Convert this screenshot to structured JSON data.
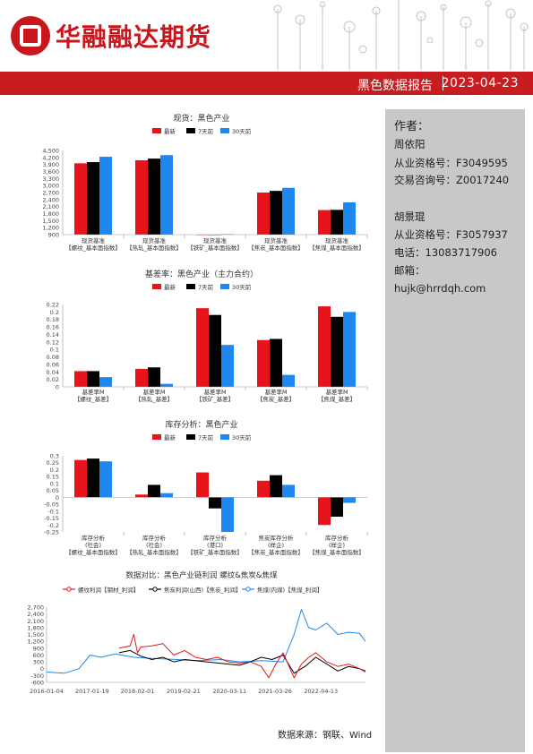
{
  "header": {
    "company_name": "华融融达期货",
    "report_title": "黑色数据报告",
    "date": "2023-04-23"
  },
  "sidebar": {
    "author_label": "作者：",
    "author1_name": "周依阳",
    "author1_license": "从业资格号：F3049595",
    "author1_advisory": "交易咨询号：Z0017240",
    "author2_name": "胡景琨",
    "author2_license": "从业资格号：F3057937",
    "phone": "电话：13083717906",
    "email_label": "邮箱：",
    "email": "hujk@hrrdqh.com"
  },
  "colors": {
    "brand_red": "#c71d20",
    "latest": "#e8141b",
    "d7": "#000000",
    "d30": "#1e88f0",
    "s_rebar": "#e8141b",
    "s_coke": "#000000",
    "s_coal": "#1e88f0"
  },
  "legend": {
    "latest": "最新",
    "d7": "7天前",
    "d30": "30天前"
  },
  "footer": {
    "source": "数据来源：钢联、Wind"
  },
  "chart_data": [
    {
      "type": "bar",
      "title": "现货：黑色产业",
      "categories": [
        [
          "现货基准",
          "【螺纹_基本面指数】"
        ],
        [
          "现货基准",
          "【热轧_基本面指数】"
        ],
        [
          "现货基准",
          "【铁矿_基本面指数】"
        ],
        [
          "现货基准",
          "【焦炭_基本面指数】"
        ],
        [
          "现货基准",
          "【焦煤_基本面指数】"
        ]
      ],
      "series": [
        {
          "name": "最新",
          "values": [
            3950,
            4080,
            890,
            2700,
            1950
          ]
        },
        {
          "name": "7天前",
          "values": [
            4000,
            4150,
            900,
            2770,
            1960
          ]
        },
        {
          "name": "30天前",
          "values": [
            4230,
            4300,
            920,
            2900,
            2280
          ]
        }
      ],
      "ylim": [
        900,
        4500
      ],
      "yticks": [
        "4,500",
        "4,200",
        "3,900",
        "3,600",
        "3,300",
        "3,000",
        "2,700",
        "2,400",
        "2,100",
        "1,800",
        "1,500",
        "1,200",
        "900"
      ]
    },
    {
      "type": "bar",
      "title": "基差率：黑色产业（主力合约）",
      "categories": [
        [
          "基差率M",
          "【螺纹_基差】"
        ],
        [
          "基差率M",
          "【热轧_基差】"
        ],
        [
          "基差率M",
          "【铁矿_基差】"
        ],
        [
          "基差率M",
          "【焦炭_基差】"
        ],
        [
          "基差率M",
          "【焦煤_基差】"
        ]
      ],
      "series": [
        {
          "name": "最新",
          "values": [
            0.042,
            0.048,
            0.21,
            0.125,
            0.215
          ]
        },
        {
          "name": "7天前",
          "values": [
            0.042,
            0.052,
            0.192,
            0.128,
            0.187
          ]
        },
        {
          "name": "30天前",
          "values": [
            0.026,
            0.008,
            0.112,
            0.032,
            0.2
          ]
        }
      ],
      "ylim": [
        0,
        0.22
      ],
      "yticks": [
        "0.22",
        "0.2",
        "0.18",
        "0.16",
        "0.14",
        "0.12",
        "0.1",
        "0.08",
        "0.06",
        "0.04",
        "0.02",
        "0"
      ]
    },
    {
      "type": "bar",
      "title": "库存分析：黑色产业",
      "categories": [
        [
          "库存分析",
          "(社会)",
          "【螺纹_基本面指数】"
        ],
        [
          "库存分析",
          "(社会)",
          "【热轧_基本面指数】"
        ],
        [
          "库存分析",
          "(港口)",
          "【铁矿_基本面指数】"
        ],
        [
          "焦炭库存分析",
          "(样企)",
          "【焦炭_基本面指数】"
        ],
        [
          "库存分析",
          "(样企)",
          "【焦煤_基本面指数】"
        ]
      ],
      "series": [
        {
          "name": "最新",
          "values": [
            0.27,
            0.02,
            0.18,
            0.12,
            -0.2
          ]
        },
        {
          "name": "7天前",
          "values": [
            0.28,
            0.09,
            -0.08,
            0.16,
            -0.14
          ]
        },
        {
          "name": "30天前",
          "values": [
            0.26,
            0.03,
            -0.25,
            0.09,
            -0.04
          ]
        }
      ],
      "ylim": [
        -0.25,
        0.3
      ],
      "yticks": [
        "0.3",
        "0.25",
        "0.2",
        "0.15",
        "0.1",
        "0.05",
        "0",
        "-0.05",
        "-0.1",
        "-0.15",
        "-0.2",
        "-0.25"
      ]
    },
    {
      "type": "line",
      "title": "数据对比：黑色产业链利润 螺纹&焦炭&焦煤",
      "series_names": [
        "螺纹利润【钢材_利润】",
        "焦炭利润(山西)【焦炭_利润】",
        "焦煤(内煤)【焦煤_利润】"
      ],
      "xticks": [
        "2016-01-04",
        "2017-01-19",
        "2018-02-01",
        "2019-02-21",
        "2020-03-11",
        "2021-03-26",
        "2022-04-13"
      ],
      "yticks": [
        "2,700",
        "2,400",
        "2,100",
        "1,800",
        "1,500",
        "1,200",
        "900",
        "600",
        "300",
        "0",
        "-300",
        "-600"
      ],
      "ylim": [
        -600,
        2700
      ],
      "x_range": [
        "2016-01-04",
        "2023-04-20"
      ],
      "series": [
        {
          "name": "螺纹利润【钢材_利润】",
          "x": [
            "2017-09-01",
            "2017-12-01",
            "2018-01-01",
            "2018-02-01",
            "2018-03-01",
            "2018-06-01",
            "2018-09-01",
            "2018-12-01",
            "2019-03-01",
            "2019-06-01",
            "2019-09-01",
            "2019-12-01",
            "2020-03-01",
            "2020-06-01",
            "2020-09-01",
            "2020-12-01",
            "2021-02-01",
            "2021-04-01",
            "2021-06-01",
            "2021-09-01",
            "2021-11-01",
            "2022-01-01",
            "2022-03-01",
            "2022-06-01",
            "2022-09-01",
            "2022-12-01",
            "2023-03-01",
            "2023-04-20"
          ],
          "y": [
            900,
            1000,
            1500,
            700,
            950,
            1000,
            1100,
            600,
            800,
            500,
            400,
            500,
            300,
            250,
            300,
            100,
            -400,
            200,
            700,
            -400,
            200,
            500,
            700,
            300,
            100,
            200,
            0,
            -150
          ]
        },
        {
          "name": "焦炭利润(山西)【焦炭_利润】",
          "x": [
            "2017-09-01",
            "2017-12-01",
            "2018-03-01",
            "2018-06-01",
            "2018-09-01",
            "2018-12-01",
            "2019-03-01",
            "2019-06-01",
            "2019-09-01",
            "2019-12-01",
            "2020-03-01",
            "2020-06-01",
            "2020-09-01",
            "2020-12-01",
            "2021-03-01",
            "2021-06-01",
            "2021-09-01",
            "2021-12-01",
            "2022-03-01",
            "2022-06-01",
            "2022-09-01",
            "2022-12-01",
            "2023-03-01",
            "2023-04-20"
          ],
          "y": [
            700,
            800,
            550,
            400,
            500,
            300,
            400,
            350,
            300,
            250,
            200,
            150,
            300,
            500,
            400,
            600,
            -200,
            100,
            500,
            200,
            -100,
            100,
            0,
            -100
          ]
        },
        {
          "name": "焦煤(内煤)【焦煤_利润】",
          "x": [
            "2016-01-04",
            "2016-06-01",
            "2016-10-01",
            "2017-01-01",
            "2017-04-01",
            "2017-08-01",
            "2018-01-01",
            "2018-06-01",
            "2019-01-01",
            "2019-06-01",
            "2020-01-01",
            "2020-06-01",
            "2020-12-01",
            "2021-06-01",
            "2021-09-01",
            "2021-11-01",
            "2022-01-01",
            "2022-03-01",
            "2022-06-01",
            "2022-09-01",
            "2022-12-01",
            "2023-03-01",
            "2023-04-20"
          ],
          "y": [
            -150,
            -200,
            0,
            600,
            500,
            650,
            500,
            450,
            400,
            350,
            400,
            300,
            350,
            300,
            1500,
            2600,
            1800,
            1700,
            2000,
            1500,
            1600,
            1550,
            1200
          ]
        }
      ]
    }
  ]
}
